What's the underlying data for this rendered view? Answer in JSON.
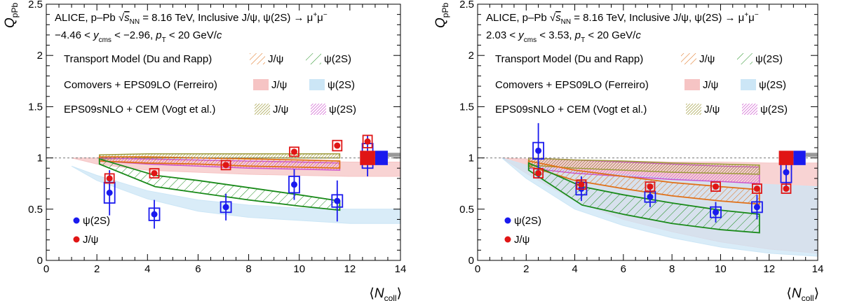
{
  "chart_data": [
    {
      "type": "scatter",
      "panel": "left",
      "title": "ALICE, p–Pb √s_NN = 8.16 TeV, Inclusive J/ψ, ψ(2S) → μ⁺μ⁻",
      "kinematics": "−4.46 < y_cms < −2.96, p_T < 20 GeV/c",
      "xlabel": "⟨N_coll⟩",
      "ylabel": "Q_pPb",
      "xlim": [
        0,
        14
      ],
      "ylim": [
        0,
        2.5
      ],
      "xticks": [
        "0",
        "2",
        "4",
        "6",
        "8",
        "10",
        "12",
        "14"
      ],
      "yticks": [
        "0",
        "0.5",
        "1",
        "1.5",
        "2",
        "2.5"
      ],
      "grid": false,
      "legend_title_models": [
        "Transport Model (Du and Rapp)",
        "Comovers + EPS09LO (Ferreiro)",
        "EPS09sNLO + CEM (Vogt et al.)"
      ],
      "model_particles": [
        "J/ψ",
        "ψ(2S)"
      ],
      "data_legend": [
        "ψ(2S)",
        "J/ψ"
      ],
      "series": [
        {
          "name": "ψ(2S)",
          "color": "#1a1aee",
          "points": [
            {
              "x": 2.5,
              "y": 0.66,
              "err": 0.22,
              "sys": 0.1
            },
            {
              "x": 4.27,
              "y": 0.45,
              "err": 0.14,
              "sys": 0.06
            },
            {
              "x": 7.1,
              "y": 0.52,
              "err": 0.13,
              "sys": 0.05
            },
            {
              "x": 9.8,
              "y": 0.74,
              "err": 0.15,
              "sys": 0.08
            },
            {
              "x": 11.5,
              "y": 0.58,
              "err": 0.2,
              "sys": 0.06
            },
            {
              "x": 12.7,
              "y": 1.02,
              "err": 0.2,
              "sys": 0.12
            }
          ]
        },
        {
          "name": "J/ψ",
          "color": "#e01515",
          "points": [
            {
              "x": 2.5,
              "y": 0.8,
              "err": 0.01,
              "sys": 0.04
            },
            {
              "x": 4.27,
              "y": 0.85,
              "err": 0.01,
              "sys": 0.04
            },
            {
              "x": 7.1,
              "y": 0.93,
              "err": 0.01,
              "sys": 0.04
            },
            {
              "x": 9.8,
              "y": 1.06,
              "err": 0.01,
              "sys": 0.04
            },
            {
              "x": 11.5,
              "y": 1.12,
              "err": 0.01,
              "sys": 0.05
            },
            {
              "x": 12.7,
              "y": 1.16,
              "err": 0.01,
              "sys": 0.06
            }
          ]
        }
      ],
      "models": [
        {
          "model": "Comovers + EPS09LO (Ferreiro)",
          "particle": "J/ψ",
          "style": "fill",
          "color": "#f6c4c4",
          "x": [
            1.0,
            2,
            4,
            6,
            8,
            10,
            12,
            14
          ],
          "low": [
            1.0,
            0.94,
            0.88,
            0.86,
            0.84,
            0.83,
            0.82,
            0.82
          ],
          "high": [
            1.0,
            1.0,
            0.99,
            0.98,
            0.97,
            0.97,
            0.96,
            0.96
          ]
        },
        {
          "model": "Comovers + EPS09LO (Ferreiro)",
          "particle": "ψ(2S)",
          "style": "fill",
          "color": "#cce6f6",
          "x": [
            1.0,
            2,
            4,
            6,
            8,
            10,
            12,
            14
          ],
          "low": [
            0.92,
            0.78,
            0.6,
            0.48,
            0.42,
            0.39,
            0.36,
            0.36
          ],
          "high": [
            0.92,
            0.83,
            0.68,
            0.59,
            0.54,
            0.51,
            0.5,
            0.5
          ]
        },
        {
          "model": "EPS09sNLO + CEM (Vogt et al.)",
          "particle": "J/ψ",
          "style": "dense",
          "color": "#9e9a3a",
          "x": [
            2.1,
            4,
            6,
            8,
            10,
            11.6
          ],
          "low": [
            0.99,
            1.0,
            1.0,
            1.0,
            1.0,
            1.0
          ],
          "high": [
            1.03,
            1.04,
            1.04,
            1.04,
            1.04,
            1.04
          ]
        },
        {
          "model": "EPS09sNLO + CEM (Vogt et al.)",
          "particle": "ψ(2S)",
          "style": "dense",
          "color": "#cc55cc",
          "x": [
            2.1,
            4,
            6,
            8,
            10,
            11.6
          ],
          "low": [
            0.97,
            0.94,
            0.92,
            0.9,
            0.89,
            0.88
          ],
          "high": [
            1.0,
            0.99,
            0.98,
            0.97,
            0.96,
            0.95
          ]
        },
        {
          "model": "Transport Model (Du and Rapp)",
          "particle": "J/ψ",
          "style": "hatch",
          "color": "#e07018",
          "x": [
            2.1,
            4,
            6,
            8,
            10,
            11.6
          ],
          "low": [
            0.97,
            0.95,
            0.94,
            0.92,
            0.91,
            0.9
          ],
          "high": [
            1.01,
            1.01,
            1.0,
            0.99,
            0.98,
            0.97
          ]
        },
        {
          "model": "Transport Model (Du and Rapp)",
          "particle": "ψ(2S)",
          "style": "hatch",
          "color": "#1a8a1a",
          "x": [
            2.1,
            4.3,
            6,
            8,
            10,
            11.6
          ],
          "low": [
            0.94,
            0.72,
            0.66,
            0.59,
            0.53,
            0.49
          ],
          "high": [
            0.99,
            0.83,
            0.78,
            0.71,
            0.64,
            0.58
          ]
        }
      ],
      "global_uncertainty": [
        {
          "color": "#e01515",
          "width": 0.6
        },
        {
          "color": "#1a1aee",
          "width": 0.5
        },
        {
          "color": "#999999",
          "width": 0.5
        }
      ]
    },
    {
      "type": "scatter",
      "panel": "right",
      "title": "ALICE, p–Pb √s_NN = 8.16 TeV, Inclusive J/ψ, ψ(2S) → μ⁺μ⁻",
      "kinematics": "2.03 < y_cms < 3.53, p_T < 20 GeV/c",
      "xlabel": "⟨N_coll⟩",
      "ylabel": "Q_pPb",
      "xlim": [
        0,
        14
      ],
      "ylim": [
        0,
        2.5
      ],
      "xticks": [
        "0",
        "2",
        "4",
        "6",
        "8",
        "10",
        "12",
        "14"
      ],
      "yticks": [
        "0",
        "0.5",
        "1",
        "1.5",
        "2",
        "2.5"
      ],
      "grid": false,
      "legend_title_models": [
        "Transport Model (Du and Rapp)",
        "Comovers + EPS09LO (Ferreiro)",
        "EPS09sNLO + CEM (Vogt et al.)"
      ],
      "model_particles": [
        "J/ψ",
        "ψ(2S)"
      ],
      "data_legend": [
        "ψ(2S)",
        "J/ψ"
      ],
      "series": [
        {
          "name": "ψ(2S)",
          "color": "#1a1aee",
          "points": [
            {
              "x": 2.5,
              "y": 1.07,
              "err": 0.27,
              "sys": 0.08
            },
            {
              "x": 4.27,
              "y": 0.7,
              "err": 0.12,
              "sys": 0.06
            },
            {
              "x": 7.1,
              "y": 0.62,
              "err": 0.1,
              "sys": 0.05
            },
            {
              "x": 9.8,
              "y": 0.47,
              "err": 0.1,
              "sys": 0.04
            },
            {
              "x": 11.5,
              "y": 0.52,
              "err": 0.12,
              "sys": 0.05
            },
            {
              "x": 12.7,
              "y": 0.86,
              "err": 0.15,
              "sys": 0.1
            }
          ]
        },
        {
          "name": "J/ψ",
          "color": "#e01515",
          "points": [
            {
              "x": 2.5,
              "y": 0.85,
              "err": 0.01,
              "sys": 0.03
            },
            {
              "x": 4.27,
              "y": 0.74,
              "err": 0.01,
              "sys": 0.03
            },
            {
              "x": 7.1,
              "y": 0.72,
              "err": 0.01,
              "sys": 0.03
            },
            {
              "x": 9.8,
              "y": 0.72,
              "err": 0.01,
              "sys": 0.02
            },
            {
              "x": 11.5,
              "y": 0.7,
              "err": 0.01,
              "sys": 0.02
            },
            {
              "x": 12.7,
              "y": 0.7,
              "err": 0.01,
              "sys": 0.03
            }
          ]
        }
      ],
      "models": [
        {
          "model": "Comovers + EPS09LO (Ferreiro)",
          "particle": "J/ψ",
          "style": "fill",
          "color": "#f6c4c4",
          "x": [
            1.0,
            2,
            4,
            6,
            8,
            10,
            12,
            14
          ],
          "low": [
            1.0,
            0.85,
            0.58,
            0.4,
            0.28,
            0.18,
            0.11,
            0.07
          ],
          "high": [
            1.0,
            0.99,
            0.98,
            0.97,
            0.96,
            0.96,
            0.95,
            0.95
          ]
        },
        {
          "model": "Comovers + EPS09LO (Ferreiro)",
          "particle": "ψ(2S)",
          "style": "fill",
          "color": "#cce6f6",
          "x": [
            1.0,
            2,
            4,
            6,
            8,
            10,
            12,
            14
          ],
          "low": [
            1.0,
            0.8,
            0.5,
            0.34,
            0.22,
            0.13,
            0.07,
            0.04
          ],
          "high": [
            1.0,
            0.93,
            0.87,
            0.84,
            0.8,
            0.77,
            0.74,
            0.72
          ]
        },
        {
          "model": "EPS09sNLO + CEM (Vogt et al.)",
          "particle": "ψ(2S)",
          "style": "dense",
          "color": "#cc55cc",
          "x": [
            2.1,
            4,
            6,
            8,
            10,
            11.6
          ],
          "low": [
            0.9,
            0.85,
            0.82,
            0.79,
            0.77,
            0.75
          ],
          "high": [
            1.0,
            0.98,
            0.96,
            0.94,
            0.92,
            0.91
          ]
        },
        {
          "model": "EPS09sNLO + CEM (Vogt et al.)",
          "particle": "J/ψ",
          "style": "dense",
          "color": "#9e9a3a",
          "x": [
            2.1,
            4,
            6,
            8,
            10,
            11.6
          ],
          "low": [
            0.93,
            0.9,
            0.88,
            0.86,
            0.85,
            0.84
          ],
          "high": [
            1.0,
            0.98,
            0.97,
            0.95,
            0.94,
            0.93
          ]
        },
        {
          "model": "Transport Model (Du and Rapp)",
          "particle": "J/ψ",
          "style": "hatch",
          "color": "#e07018",
          "x": [
            2.1,
            4,
            6,
            8,
            10,
            11.6
          ],
          "low": [
            0.92,
            0.78,
            0.7,
            0.63,
            0.58,
            0.55
          ],
          "high": [
            0.97,
            0.88,
            0.82,
            0.76,
            0.72,
            0.69
          ]
        },
        {
          "model": "Transport Model (Du and Rapp)",
          "particle": "ψ(2S)",
          "style": "hatch",
          "color": "#1a8a1a",
          "x": [
            2.1,
            4.3,
            6,
            8,
            10,
            11.6
          ],
          "low": [
            0.88,
            0.54,
            0.45,
            0.36,
            0.3,
            0.27
          ],
          "high": [
            0.95,
            0.72,
            0.64,
            0.56,
            0.49,
            0.45
          ]
        }
      ],
      "global_uncertainty": [
        {
          "color": "#e01515",
          "width": 0.6
        },
        {
          "color": "#1a1aee",
          "width": 0.5
        },
        {
          "color": "#999999",
          "width": 0.5
        }
      ]
    }
  ]
}
